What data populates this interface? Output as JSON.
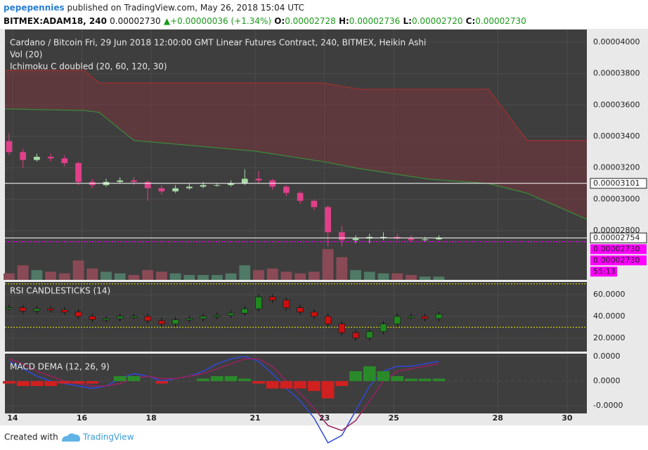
{
  "header": {
    "author": "pepepennies",
    "published": "published on TradingView.com, May 26, 2018 15:04 UTC",
    "symbol": "BITMEX:ADAM18, 240",
    "last": "0.00002730",
    "arrow": "▲",
    "change": "+0.00000036 (+1.34%)",
    "ohlc": [
      {
        "key": "O:",
        "value": "0.00002728"
      },
      {
        "key": "H:",
        "value": "0.00002736"
      },
      {
        "key": "L:",
        "value": "0.00002720"
      },
      {
        "key": "C:",
        "value": "0.00002730"
      }
    ]
  },
  "chart_data": [
    {
      "type": "candlestick",
      "title": "Cardano / Bitcoin Fri, 29 Jun 2018 12:00:00 GMT Linear Futures Contract, 240, BITMEX, Heikin Ashi",
      "indicators": [
        "Vol (20)",
        "Ichimoku C doubled (20, 60, 120, 30)"
      ],
      "up_color": "#a8dca8",
      "down_color": "#e0408a",
      "x": [
        13.9,
        14.3,
        14.7,
        15.1,
        15.5,
        15.9,
        16.3,
        16.7,
        17.1,
        17.5,
        17.9,
        18.3,
        18.7,
        19.1,
        19.5,
        19.9,
        20.3,
        20.7,
        21.1,
        21.5,
        21.9,
        22.3,
        22.7,
        23.1,
        23.5,
        23.9,
        24.3,
        24.7,
        25.1,
        25.5,
        25.9,
        26.3
      ],
      "open": [
        3.37e-05,
        3.3e-05,
        3.25e-05,
        3.27e-05,
        3.26e-05,
        3.23e-05,
        3.11e-05,
        3.09e-05,
        3.11e-05,
        3.12e-05,
        3.11e-05,
        3.07e-05,
        3.05e-05,
        3.07e-05,
        3.08e-05,
        3.09e-05,
        3.09e-05,
        3.1e-05,
        3.13e-05,
        3.12e-05,
        3.08e-05,
        3.04e-05,
        2.99e-05,
        2.95e-05,
        2.79e-05,
        2.74e-05,
        2.75e-05,
        2.76e-05,
        2.76e-05,
        2.75e-05,
        2.74e-05,
        2.745e-05
      ],
      "high": [
        3.42e-05,
        3.32e-05,
        3.29e-05,
        3.29e-05,
        3.28e-05,
        3.24e-05,
        3.13e-05,
        3.13e-05,
        3.14e-05,
        3.14e-05,
        3.12e-05,
        3.09e-05,
        3.09e-05,
        3.1e-05,
        3.11e-05,
        3.1e-05,
        3.12e-05,
        3.19e-05,
        3.18e-05,
        3.13e-05,
        3.09e-05,
        3.05e-05,
        3e-05,
        2.96e-05,
        2.83e-05,
        2.77e-05,
        2.78e-05,
        2.79e-05,
        2.78e-05,
        2.77e-05,
        2.76e-05,
        2.77e-05
      ],
      "low": [
        3.28e-05,
        3.2e-05,
        3.24e-05,
        3.24e-05,
        3.21e-05,
        3.09e-05,
        3.07e-05,
        3.08e-05,
        3.1e-05,
        3.09e-05,
        2.99e-05,
        3.03e-05,
        3.04e-05,
        3.06e-05,
        3.07e-05,
        3.08e-05,
        3.08e-05,
        3.09e-05,
        3.1e-05,
        3.06e-05,
        3.02e-05,
        2.97e-05,
        2.93e-05,
        2.7e-05,
        2.7e-05,
        2.72e-05,
        2.72e-05,
        2.74e-05,
        2.74e-05,
        2.73e-05,
        2.73e-05,
        2.74e-05
      ],
      "close": [
        3.3e-05,
        3.25e-05,
        3.27e-05,
        3.26e-05,
        3.23e-05,
        3.11e-05,
        3.09e-05,
        3.11e-05,
        3.12e-05,
        3.11e-05,
        3.07e-05,
        3.05e-05,
        3.07e-05,
        3.08e-05,
        3.09e-05,
        3.09e-05,
        3.1e-05,
        3.13e-05,
        3.12e-05,
        3.08e-05,
        3.04e-05,
        2.99e-05,
        2.95e-05,
        2.79e-05,
        2.74e-05,
        2.75e-05,
        2.76e-05,
        2.76e-05,
        2.75e-05,
        2.74e-05,
        2.745e-05,
        2.754e-05
      ],
      "volume": {
        "values": [
          20,
          45,
          30,
          25,
          20,
          60,
          35,
          25,
          20,
          15,
          30,
          25,
          20,
          15,
          15,
          15,
          20,
          45,
          30,
          35,
          25,
          20,
          25,
          95,
          70,
          30,
          25,
          20,
          20,
          15,
          10,
          10
        ],
        "ylim": [
          0,
          100
        ]
      },
      "cloud": {
        "x": [
          13.78,
          16.07,
          16.5,
          17.5,
          21,
          22.97,
          24,
          26,
          27.73,
          28.85,
          30.57
        ],
        "top": [
          3.82e-05,
          3.82e-05,
          3.74e-05,
          3.74e-05,
          3.74e-05,
          3.74e-05,
          3.7e-05,
          3.7e-05,
          3.7e-05,
          3.374e-05,
          3.374e-05
        ],
        "bottom": [
          3.575e-05,
          3.565e-05,
          3.553e-05,
          3.374e-05,
          3.306e-05,
          3.239e-05,
          3.195e-05,
          3.128e-05,
          3.1e-05,
          3.038e-05,
          2.872e-05
        ],
        "top_color": "#a03030",
        "bottom_color": "#3a8a3a",
        "fill": "rgba(130,50,60,0.45)"
      },
      "xlim": [
        13.78,
        30.57
      ],
      "xticks": [
        14,
        16,
        18,
        21,
        23,
        25,
        28,
        30
      ],
      "ylim": [
        2.487e-05,
        4.08e-05
      ],
      "yticks": [
        {
          "value": 4e-05,
          "label": "0.00004000"
        },
        {
          "value": 3.8e-05,
          "label": "0.00003800"
        },
        {
          "value": 3.6e-05,
          "label": "0.00003600"
        },
        {
          "value": 3.4e-05,
          "label": "0.00003400"
        },
        {
          "value": 3.2e-05,
          "label": "0.00003200"
        },
        {
          "value": 3e-05,
          "label": "0.00003000"
        },
        {
          "value": 2.8e-05,
          "label": "0.00002800"
        }
      ],
      "badges": [
        {
          "value": 3.101e-05,
          "label": "0.00003101",
          "color": "#ffffff"
        },
        {
          "value": 2.754e-05,
          "label": "0.00002754",
          "color": "#ffffff"
        },
        {
          "value": 2.73e-05,
          "label": "0.00002730",
          "color": "#ff00ff"
        },
        {
          "value": 2.73e-05,
          "label": "0.00002730",
          "color": "#ff00ff"
        },
        {
          "label": "55:13",
          "color": "#ff00ff"
        }
      ],
      "grid": true
    },
    {
      "type": "rsi",
      "title": "RSI CANDLESTICKS (14)",
      "x": [
        13.9,
        14.3,
        14.7,
        15.1,
        15.5,
        15.9,
        16.3,
        16.7,
        17.1,
        17.5,
        17.9,
        18.3,
        18.7,
        19.1,
        19.5,
        19.9,
        20.3,
        20.7,
        21.1,
        21.5,
        21.9,
        22.3,
        22.7,
        23.1,
        23.5,
        23.9,
        24.3,
        24.7,
        25.1,
        25.5,
        25.9,
        26.3
      ],
      "values": [
        48,
        45,
        47,
        46,
        44,
        40,
        37,
        38,
        40,
        40,
        36,
        33,
        37,
        38,
        40,
        41,
        43,
        47,
        58,
        55,
        48,
        44,
        40,
        33,
        25,
        20,
        26,
        33,
        40,
        40,
        38,
        42
      ],
      "up_color": "#1f8a1f",
      "down_color": "#cc1010",
      "levels": [
        30,
        70
      ],
      "ylim": [
        7.5,
        71.8
      ],
      "yticks": [
        {
          "value": 60,
          "label": "60.0000"
        },
        {
          "value": 40,
          "label": "40.0000"
        },
        {
          "value": 20,
          "label": "20.0000"
        }
      ]
    },
    {
      "type": "macd",
      "title": "MACD DEMA (12, 26, 9)",
      "x": [
        13.9,
        14.3,
        14.7,
        15.1,
        15.5,
        15.9,
        16.3,
        16.7,
        17.1,
        17.5,
        17.9,
        18.3,
        18.7,
        19.1,
        19.5,
        19.9,
        20.3,
        20.7,
        21.1,
        21.5,
        21.9,
        22.3,
        22.7,
        23.1,
        23.5,
        23.9,
        24.3,
        24.7,
        25.1,
        25.5,
        25.9,
        26.3
      ],
      "series": [
        {
          "kind": "line",
          "color": "#3048d8",
          "values": [
            8e-08,
            5e-08,
            2e-08,
            0,
            -1e-08,
            -2e-08,
            -3e-08,
            -2e-08,
            1e-08,
            3e-08,
            2e-08,
            0,
            1e-08,
            2e-08,
            4e-08,
            7e-08,
            9e-08,
            1e-07,
            8e-08,
            3e-08,
            -3e-08,
            -8e-08,
            -1.5e-07,
            -2.5e-07,
            -2.2e-07,
            -1.2e-07,
            -2e-08,
            4e-08,
            6e-08,
            6e-08,
            7e-08,
            8e-08
          ]
        },
        {
          "kind": "line",
          "color": "#9a2060",
          "values": [
            9e-08,
            7e-08,
            4e-08,
            2e-08,
            0,
            -1e-08,
            -2e-08,
            -2e-08,
            -1e-08,
            1e-08,
            2e-08,
            1e-08,
            1e-08,
            2e-08,
            3e-08,
            5e-08,
            7e-08,
            9e-08,
            9e-08,
            6e-08,
            0,
            -5e-08,
            -1.1e-07,
            -1.8e-07,
            -2e-07,
            -1.6e-07,
            -8e-08,
            0,
            4e-08,
            5e-08,
            6e-08,
            7e-08
          ]
        },
        {
          "kind": "histogram",
          "up_color": "#2a8a2a",
          "down_color": "#d02020",
          "values": [
            -1e-08,
            -2e-08,
            -2e-08,
            -2e-08,
            -1e-08,
            -1e-08,
            -1e-08,
            0,
            2e-08,
            2e-08,
            0,
            -1e-08,
            0,
            0,
            1e-08,
            2e-08,
            2e-08,
            1e-08,
            -1e-08,
            -3e-08,
            -3e-08,
            -3e-08,
            -4e-08,
            -7e-08,
            -2e-08,
            4e-08,
            6e-08,
            4e-08,
            2e-08,
            1e-08,
            1e-08,
            1e-08
          ]
        }
      ],
      "ylim": [
        -1.31e-07,
        1.11e-07
      ],
      "yticks": [
        {
          "value": 1e-07,
          "label": "0.0000"
        },
        {
          "value": 0,
          "label": "0.0000"
        },
        {
          "value": -1e-07,
          "label": "-0.0000"
        }
      ]
    }
  ],
  "footer": {
    "created": "Created with",
    "brand": "TradingView"
  }
}
